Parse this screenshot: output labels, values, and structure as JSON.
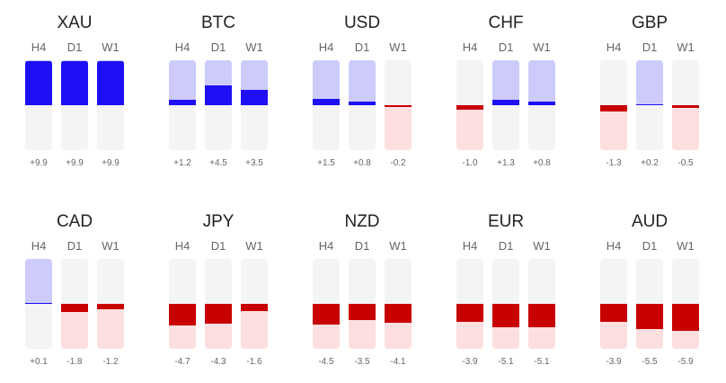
{
  "colors": {
    "pos_bar": "#1e0ff5",
    "pos_bg": "#cccbfb",
    "neg_bar": "#c80000",
    "neg_bg": "#fddfdf",
    "track": "#f4f4f4"
  },
  "chart_data": {
    "type": "bar",
    "title": "",
    "ylim": [
      -10,
      10
    ],
    "timeframes": [
      "H4",
      "D1",
      "W1"
    ],
    "series": [
      {
        "name": "XAU",
        "values": [
          9.9,
          9.9,
          9.9
        ],
        "labels": [
          "+9.9",
          "+9.9",
          "+9.9"
        ]
      },
      {
        "name": "BTC",
        "values": [
          1.2,
          4.5,
          3.5
        ],
        "labels": [
          "+1.2",
          "+4.5",
          "+3.5"
        ]
      },
      {
        "name": "USD",
        "values": [
          1.5,
          0.8,
          -0.2
        ],
        "labels": [
          "+1.5",
          "+0.8",
          "-0.2"
        ]
      },
      {
        "name": "CHF",
        "values": [
          -1.0,
          1.3,
          0.8
        ],
        "labels": [
          "-1.0",
          "+1.3",
          "+0.8"
        ]
      },
      {
        "name": "GBP",
        "values": [
          -1.3,
          0.2,
          -0.5
        ],
        "labels": [
          "-1.3",
          "+0.2",
          "-0.5"
        ]
      },
      {
        "name": "CAD",
        "values": [
          0.1,
          -1.8,
          -1.2
        ],
        "labels": [
          "+0.1",
          "-1.8",
          "-1.2"
        ]
      },
      {
        "name": "JPY",
        "values": [
          -4.7,
          -4.3,
          -1.6
        ],
        "labels": [
          "-4.7",
          "-4.3",
          "-1.6"
        ]
      },
      {
        "name": "NZD",
        "values": [
          -4.5,
          -3.5,
          -4.1
        ],
        "labels": [
          "-4.5",
          "-3.5",
          "-4.1"
        ]
      },
      {
        "name": "EUR",
        "values": [
          -3.9,
          -5.1,
          -5.1
        ],
        "labels": [
          "-3.9",
          "-5.1",
          "-5.1"
        ]
      },
      {
        "name": "AUD",
        "values": [
          -3.9,
          -5.5,
          -5.9
        ],
        "labels": [
          "-3.9",
          "-5.5",
          "-5.9"
        ]
      }
    ]
  }
}
